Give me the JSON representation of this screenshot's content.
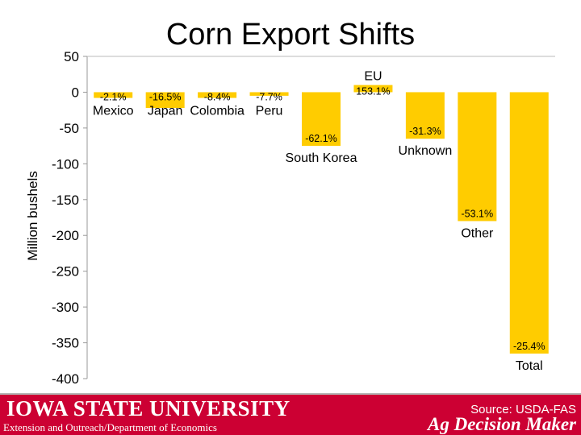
{
  "slide": {
    "title": "Corn Export Shifts"
  },
  "footer": {
    "university": "IOWA STATE UNIVERSITY",
    "department": "Extension and Outreach/Department of Economics",
    "source": "Source: USDA-FAS",
    "brand": "Ag Decision Maker",
    "color": "#cc0033"
  },
  "chart_data": {
    "type": "bar",
    "title": "Corn Export Shifts",
    "xlabel": "",
    "ylabel": "Million bushels",
    "ylim": [
      -400,
      50
    ],
    "yticks": [
      "50",
      "0",
      "-50",
      "-100",
      "-150",
      "-200",
      "-250",
      "-300",
      "-350",
      "-400"
    ],
    "bar_color": "#ffcc00",
    "grid": false,
    "categories": [
      "Mexico",
      "Japan",
      "Colombia",
      "Peru",
      "South Korea",
      "EU",
      "Unknown",
      "Other",
      "Total"
    ],
    "values": [
      -8,
      -22,
      -8,
      -5,
      -75,
      10,
      -65,
      -180,
      -365
    ],
    "data_labels": [
      "-2.1%",
      "-16.5%",
      "-8.4%",
      "-7.7%",
      "-62.1%",
      "153.1%",
      "-31.3%",
      "-53.1%",
      "-25.4%"
    ]
  }
}
